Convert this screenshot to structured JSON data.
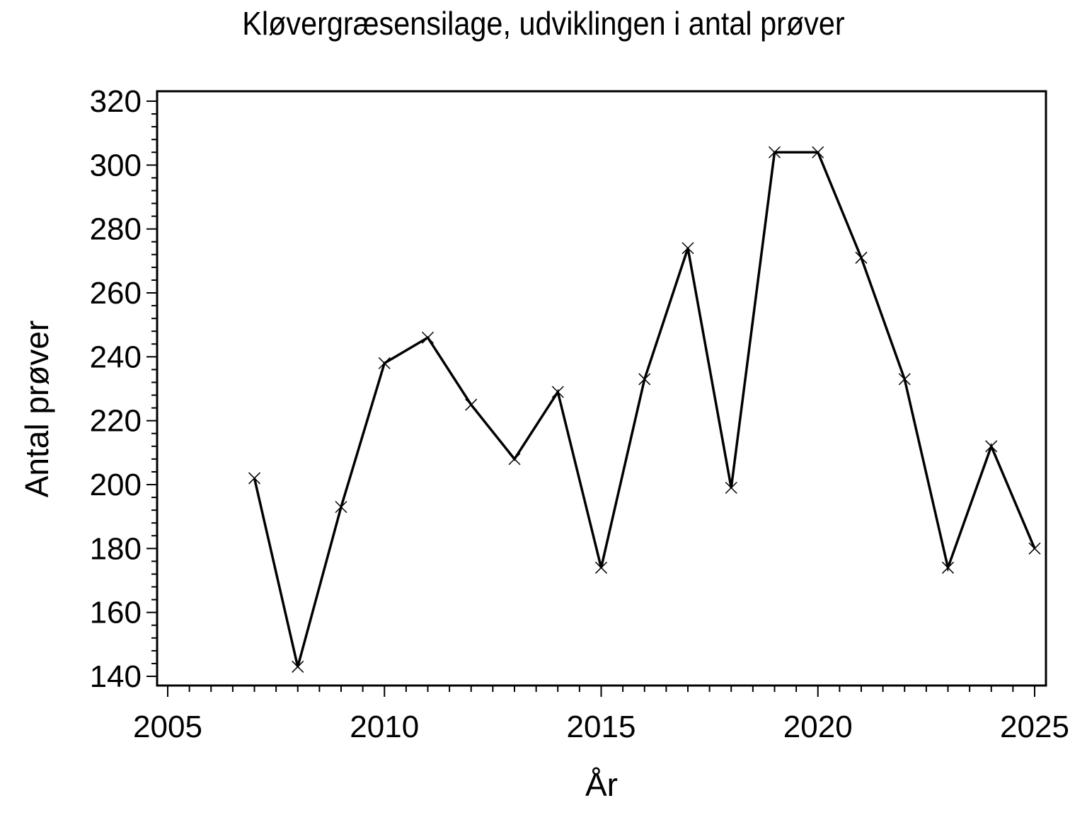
{
  "figure": {
    "background": "#ffffff",
    "foreground": "#000000"
  },
  "chart_data": {
    "type": "line",
    "title": "Kløvergræsensilage, udviklingen i antal prøver",
    "xlabel": "År",
    "ylabel": "Antal prøver",
    "x": [
      2007,
      2008,
      2009,
      2010,
      2011,
      2012,
      2013,
      2014,
      2015,
      2016,
      2017,
      2018,
      2019,
      2020,
      2021,
      2022,
      2023,
      2024,
      2025
    ],
    "values": [
      202,
      143,
      193,
      238,
      246,
      225,
      208,
      229,
      174,
      233,
      274,
      199,
      304,
      304,
      271,
      233,
      174,
      212,
      180
    ],
    "series_name": "Antal prøver",
    "xlim": [
      2005,
      2025
    ],
    "ylim": [
      140,
      320
    ],
    "x_major_ticks": [
      2005,
      2010,
      2015,
      2020,
      2025
    ],
    "x_minor_step": 0.5,
    "y_major_ticks": [
      140,
      160,
      180,
      200,
      220,
      240,
      260,
      280,
      300,
      320
    ],
    "y_minor_step": 4,
    "marker": "x",
    "line_color": "#000000",
    "grid": false,
    "legend": "none",
    "frame": "box"
  }
}
